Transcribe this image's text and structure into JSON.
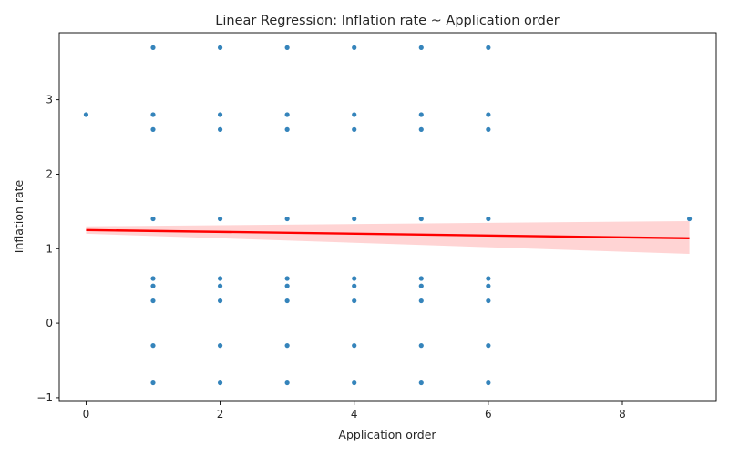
{
  "chart_data": {
    "type": "scatter",
    "title": "Linear Regression: Inflation rate ~ Application order",
    "xlabel": "Application order",
    "ylabel": "Inflation rate",
    "xlim": [
      -0.4,
      9.4
    ],
    "ylim": [
      -1.05,
      3.9
    ],
    "x_ticks": [
      0,
      2,
      4,
      6,
      8
    ],
    "y_ticks": [
      -1,
      0,
      1,
      2,
      3
    ],
    "x_tick_labels": [
      "0",
      "2",
      "4",
      "6",
      "8"
    ],
    "y_tick_labels": [
      "−1",
      "0",
      "1",
      "2",
      "3"
    ],
    "grid": false,
    "points": [
      {
        "x": 0,
        "y": 2.8
      },
      {
        "x": 1,
        "y": 3.7
      },
      {
        "x": 1,
        "y": 2.8
      },
      {
        "x": 1,
        "y": 2.6
      },
      {
        "x": 1,
        "y": 1.4
      },
      {
        "x": 1,
        "y": 0.6
      },
      {
        "x": 1,
        "y": 0.5
      },
      {
        "x": 1,
        "y": 0.3
      },
      {
        "x": 1,
        "y": -0.3
      },
      {
        "x": 1,
        "y": -0.8
      },
      {
        "x": 2,
        "y": 3.7
      },
      {
        "x": 2,
        "y": 2.8
      },
      {
        "x": 2,
        "y": 2.6
      },
      {
        "x": 2,
        "y": 1.4
      },
      {
        "x": 2,
        "y": 0.6
      },
      {
        "x": 2,
        "y": 0.5
      },
      {
        "x": 2,
        "y": 0.3
      },
      {
        "x": 2,
        "y": -0.3
      },
      {
        "x": 2,
        "y": -0.8
      },
      {
        "x": 3,
        "y": 3.7
      },
      {
        "x": 3,
        "y": 2.8
      },
      {
        "x": 3,
        "y": 2.6
      },
      {
        "x": 3,
        "y": 1.4
      },
      {
        "x": 3,
        "y": 0.6
      },
      {
        "x": 3,
        "y": 0.5
      },
      {
        "x": 3,
        "y": 0.3
      },
      {
        "x": 3,
        "y": -0.3
      },
      {
        "x": 3,
        "y": -0.8
      },
      {
        "x": 4,
        "y": 3.7
      },
      {
        "x": 4,
        "y": 2.8
      },
      {
        "x": 4,
        "y": 2.6
      },
      {
        "x": 4,
        "y": 1.4
      },
      {
        "x": 4,
        "y": 0.6
      },
      {
        "x": 4,
        "y": 0.5
      },
      {
        "x": 4,
        "y": 0.3
      },
      {
        "x": 4,
        "y": -0.3
      },
      {
        "x": 4,
        "y": -0.8
      },
      {
        "x": 5,
        "y": 3.7
      },
      {
        "x": 5,
        "y": 2.8
      },
      {
        "x": 5,
        "y": 2.6
      },
      {
        "x": 5,
        "y": 1.4
      },
      {
        "x": 5,
        "y": 0.6
      },
      {
        "x": 5,
        "y": 0.5
      },
      {
        "x": 5,
        "y": 0.3
      },
      {
        "x": 5,
        "y": -0.3
      },
      {
        "x": 5,
        "y": -0.8
      },
      {
        "x": 6,
        "y": 3.7
      },
      {
        "x": 6,
        "y": 2.8
      },
      {
        "x": 6,
        "y": 2.6
      },
      {
        "x": 6,
        "y": 1.4
      },
      {
        "x": 6,
        "y": 0.6
      },
      {
        "x": 6,
        "y": 0.5
      },
      {
        "x": 6,
        "y": 0.3
      },
      {
        "x": 6,
        "y": -0.3
      },
      {
        "x": 6,
        "y": -0.8
      },
      {
        "x": 9,
        "y": 1.4
      }
    ],
    "regression": {
      "x": [
        0,
        9
      ],
      "y": [
        1.25,
        1.14
      ],
      "ci_lower": [
        1.2,
        0.93
      ],
      "ci_upper": [
        1.3,
        1.37
      ]
    },
    "colors": {
      "points": "#1f77b4",
      "line": "#ff0000",
      "band": "#ffcccc"
    }
  }
}
